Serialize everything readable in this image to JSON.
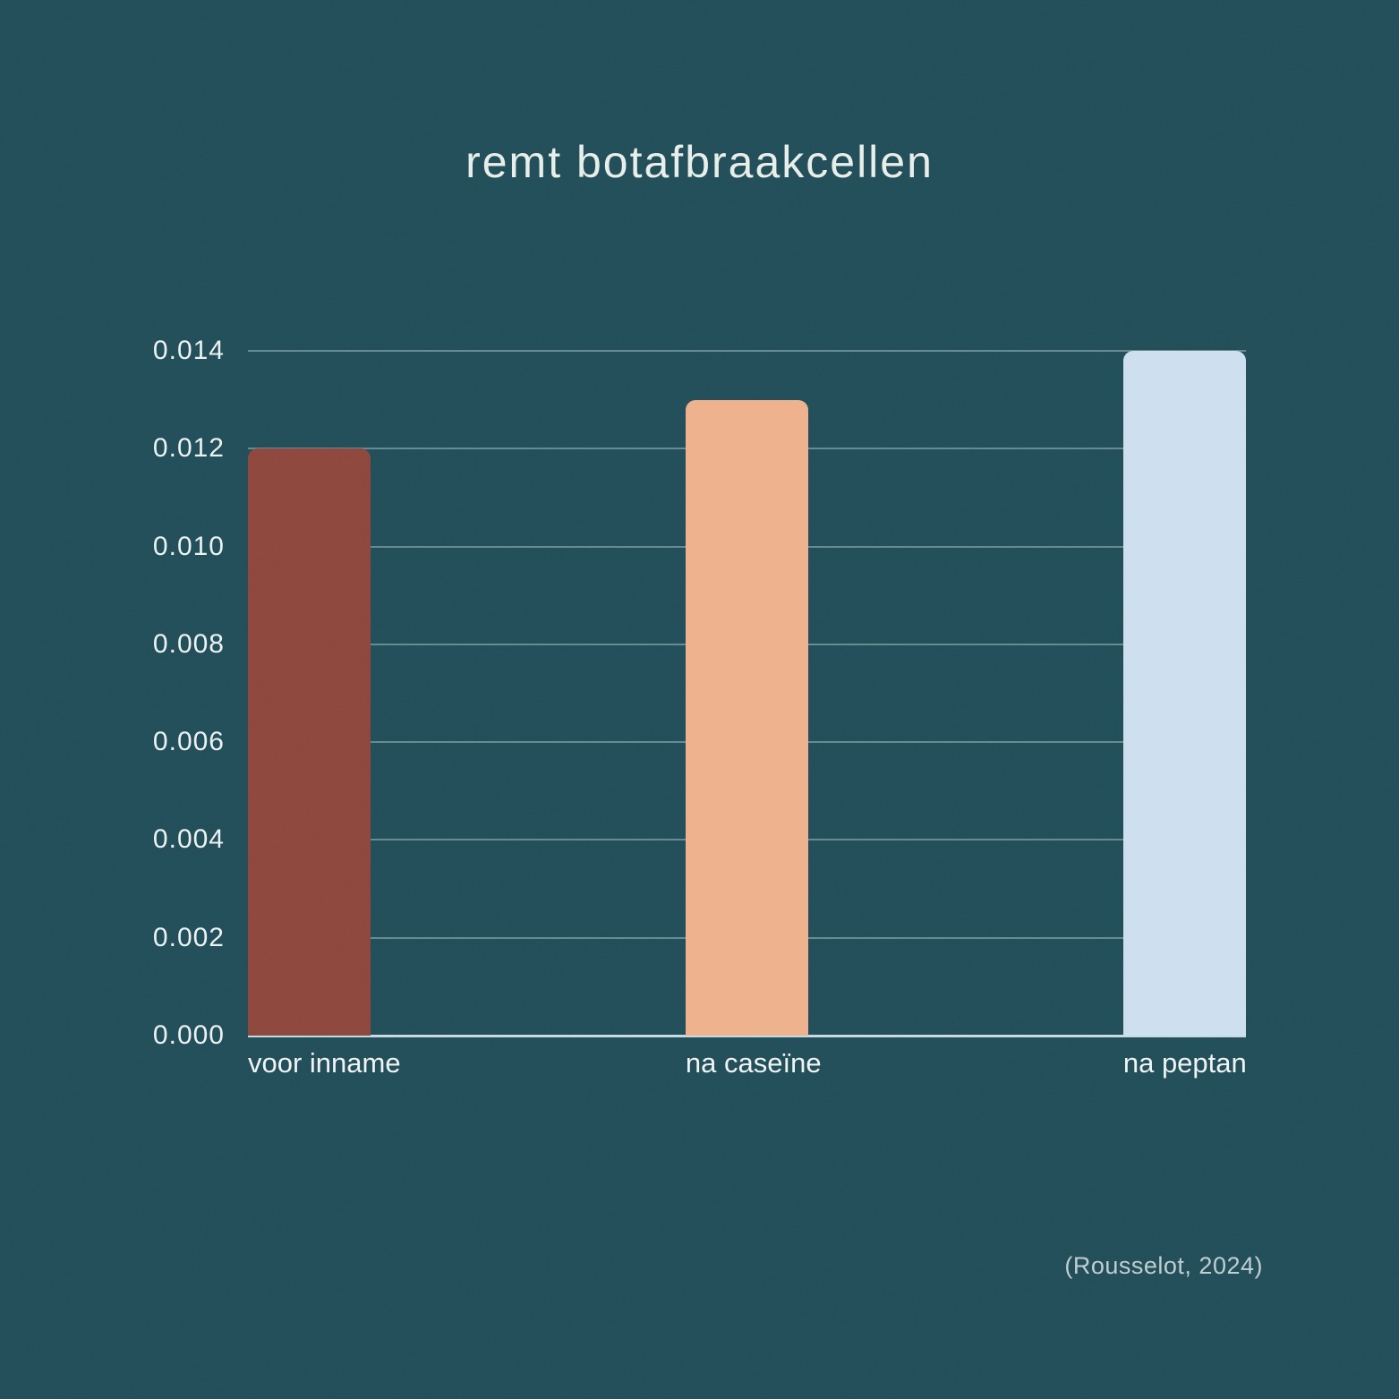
{
  "title": "remt botafbraakcellen",
  "citation": "(Rousselot, 2024)",
  "colors": {
    "background": "#1f4d58",
    "title_text": "#e9efea",
    "axis_text": "#edf3f3",
    "citation_text": "#c0cfd2",
    "gridline": "rgba(210,231,236,0.40)",
    "baseline": "rgba(222,240,245,0.88)"
  },
  "chart_data": {
    "type": "bar",
    "title": "remt botafbraakcellen",
    "categories": [
      "voor inname",
      "na caseïne",
      "na peptan"
    ],
    "values": [
      0.012,
      0.013,
      0.014
    ],
    "bar_colors": [
      "#8e463c",
      "#efb28d",
      "#cee1f0"
    ],
    "xlabel": "",
    "ylabel": "",
    "ylim": [
      0,
      0.014
    ],
    "ytick_labels": [
      "0.014",
      "0.012",
      "0.010",
      "0.008",
      "0.006",
      "0.004",
      "0.002",
      "0.000"
    ],
    "grid": true,
    "legend": false,
    "annotation": "(Rousselot, 2024)"
  }
}
